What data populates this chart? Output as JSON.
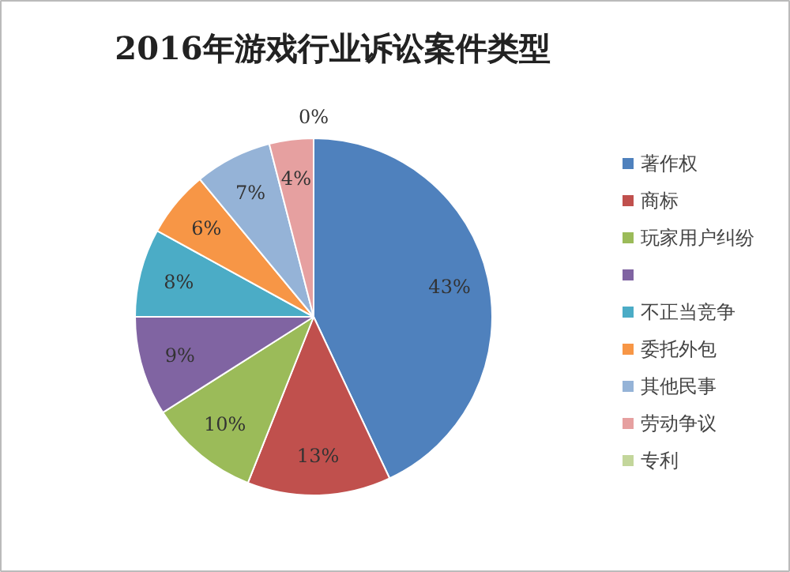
{
  "chart_data": {
    "type": "pie",
    "title": "2016年游戏行业诉讼案件类型",
    "categories": [
      "著作权",
      "商标",
      "玩家用户纠纷",
      null,
      "不正当竞争",
      "委托外包",
      "其他民事",
      "劳动争议",
      "专利"
    ],
    "values": [
      43,
      13,
      10,
      9,
      8,
      6,
      7,
      4,
      0
    ],
    "colors": [
      "#4f81bd",
      "#c0504d",
      "#9bbb59",
      "#8064a2",
      "#4bacc6",
      "#f79646",
      "#95b3d7",
      "#e6a0a0",
      "#c3d69b"
    ],
    "value_labels": [
      "43%",
      "13%",
      "10%",
      "9%",
      "8%",
      "6%",
      "7%",
      "4%",
      "0%"
    ],
    "legend": "right"
  }
}
